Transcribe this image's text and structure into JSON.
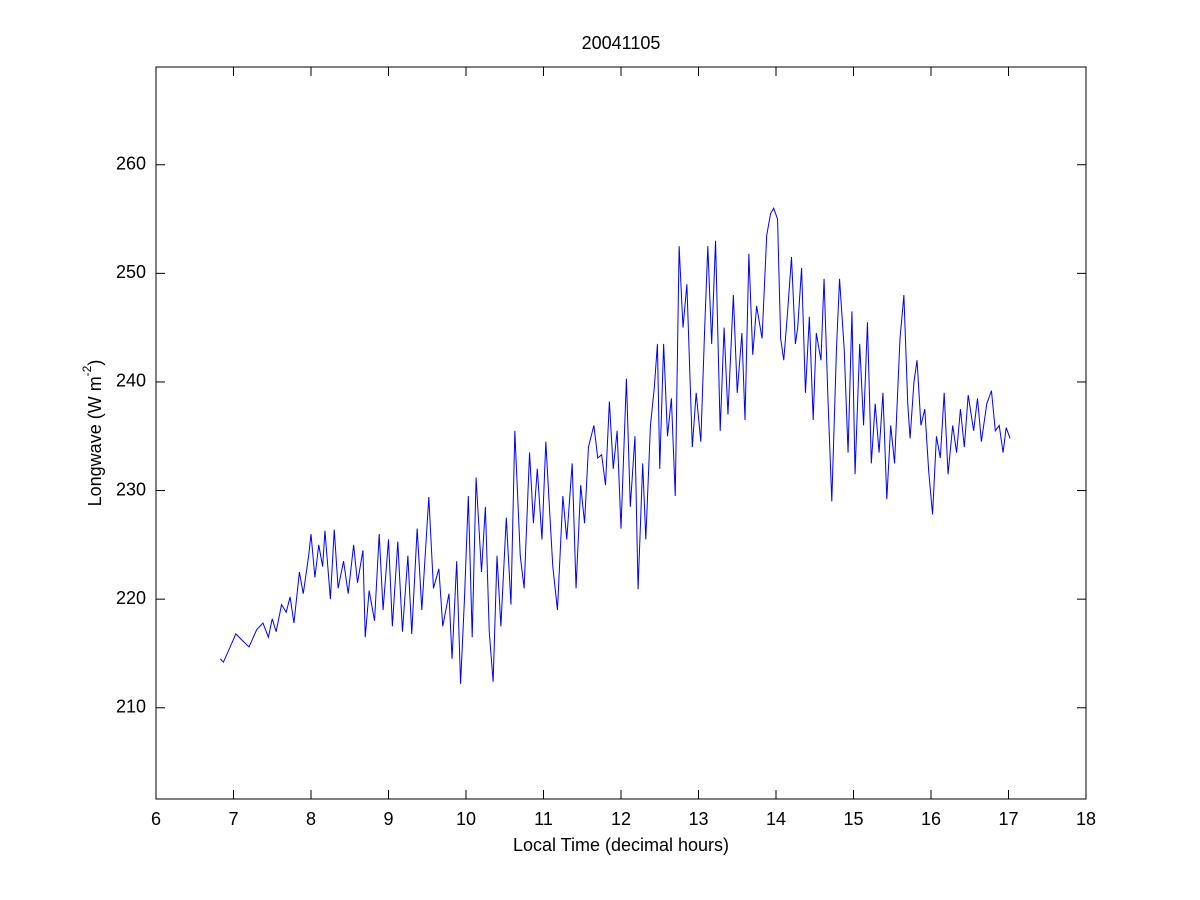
{
  "chart_data": {
    "type": "line",
    "title": "20041105",
    "xlabel": "Local Time (decimal hours)",
    "ylabel": [
      "Longwave (W m",
      "-2",
      ")"
    ],
    "x": [
      6.83,
      6.87,
      6.95,
      7.03,
      7.1,
      7.2,
      7.3,
      7.38,
      7.45,
      7.5,
      7.55,
      7.62,
      7.68,
      7.73,
      7.78,
      7.85,
      7.9,
      7.97,
      8.0,
      8.05,
      8.1,
      8.15,
      8.18,
      8.25,
      8.3,
      8.35,
      8.42,
      8.48,
      8.55,
      8.6,
      8.67,
      8.7,
      8.75,
      8.82,
      8.88,
      8.93,
      9.0,
      9.05,
      9.12,
      9.18,
      9.25,
      9.3,
      9.37,
      9.43,
      9.52,
      9.58,
      9.65,
      9.7,
      9.78,
      9.82,
      9.88,
      9.93,
      9.98,
      10.03,
      10.08,
      10.13,
      10.2,
      10.25,
      10.3,
      10.35,
      10.4,
      10.45,
      10.52,
      10.58,
      10.63,
      10.7,
      10.75,
      10.82,
      10.87,
      10.92,
      10.98,
      11.03,
      11.08,
      11.12,
      11.18,
      11.25,
      11.3,
      11.37,
      11.42,
      11.48,
      11.53,
      11.58,
      11.65,
      11.7,
      11.75,
      11.8,
      11.85,
      11.9,
      11.95,
      12.0,
      12.07,
      12.12,
      12.18,
      12.22,
      12.28,
      12.32,
      12.38,
      12.43,
      12.47,
      12.5,
      12.55,
      12.6,
      12.65,
      12.7,
      12.75,
      12.8,
      12.85,
      12.92,
      12.97,
      13.03,
      13.08,
      13.12,
      13.17,
      13.22,
      13.28,
      13.33,
      13.38,
      13.45,
      13.5,
      13.56,
      13.6,
      13.65,
      13.7,
      13.75,
      13.82,
      13.88,
      13.93,
      13.97,
      14.02,
      14.06,
      14.1,
      14.15,
      14.2,
      14.25,
      14.28,
      14.33,
      14.38,
      14.43,
      14.48,
      14.52,
      14.58,
      14.62,
      14.67,
      14.72,
      14.78,
      14.82,
      14.88,
      14.93,
      14.98,
      15.02,
      15.08,
      15.13,
      15.18,
      15.23,
      15.28,
      15.33,
      15.38,
      15.43,
      15.48,
      15.53,
      15.6,
      15.65,
      15.7,
      15.73,
      15.78,
      15.82,
      15.87,
      15.92,
      15.97,
      16.02,
      16.07,
      16.12,
      16.17,
      16.22,
      16.28,
      16.33,
      16.38,
      16.43,
      16.48,
      16.55,
      16.6,
      16.65,
      16.72,
      16.78,
      16.83,
      16.88,
      16.93,
      16.97,
      17.02
    ],
    "series": [
      {
        "color": "#0000ff",
        "values": [
          214.5,
          214.2,
          215.5,
          216.8,
          216.3,
          215.6,
          217.2,
          217.8,
          216.5,
          218.2,
          217,
          219.5,
          218.8,
          220.2,
          217.8,
          222.5,
          220.5,
          224,
          226,
          222,
          225,
          223,
          226.3,
          220,
          226.4,
          221,
          223.5,
          220.5,
          225,
          221.5,
          224.5,
          216.5,
          220.8,
          218,
          226,
          219,
          225.5,
          217.5,
          225.3,
          217,
          224,
          216.8,
          226.5,
          219,
          229.4,
          221,
          222.8,
          217.5,
          220.5,
          214.5,
          223.5,
          212.2,
          220,
          229.5,
          216.5,
          231.2,
          222.5,
          228.5,
          217,
          212.4,
          224,
          217.5,
          227.5,
          219.5,
          235.5,
          224,
          221,
          233.5,
          227,
          232,
          225.5,
          234.5,
          228,
          223,
          219,
          229.5,
          225.5,
          232.5,
          221,
          230.5,
          227,
          234,
          236,
          233,
          233.3,
          230.5,
          238.2,
          232,
          235.5,
          226.5,
          240.3,
          228.5,
          235,
          220.9,
          232.5,
          225.5,
          236,
          239.5,
          243.5,
          232,
          243.5,
          235,
          238.5,
          229.5,
          252.5,
          245,
          249,
          234,
          239,
          234.5,
          245,
          252.5,
          243.5,
          253,
          235.5,
          245,
          237,
          248,
          239,
          244.5,
          236.5,
          251.8,
          242.5,
          247,
          244,
          253.5,
          255.5,
          256,
          255,
          244,
          242,
          246.5,
          251.5,
          243.5,
          245,
          250.5,
          239,
          246,
          236.5,
          244.5,
          242,
          249.5,
          238.5,
          229,
          243,
          249.5,
          243,
          233.5,
          246.5,
          231.5,
          243.5,
          236,
          245.5,
          232.5,
          238,
          233.5,
          239,
          229.2,
          236,
          232.5,
          244,
          248,
          238,
          234.8,
          240,
          242,
          236,
          237.5,
          231.8,
          227.8,
          235,
          233,
          239,
          231.5,
          236,
          233.5,
          237.5,
          234,
          238.8,
          235.5,
          238.5,
          234.5,
          238,
          239.2,
          235.5,
          236,
          233.5,
          235.8,
          234.8
        ]
      }
    ],
    "xlim": [
      6,
      18
    ],
    "xticks": [
      6,
      7,
      8,
      9,
      10,
      11,
      12,
      13,
      14,
      15,
      16,
      17,
      18
    ],
    "ylim": [
      201.6,
      269
    ],
    "yticks": [
      210,
      220,
      230,
      240,
      250,
      260
    ],
    "grid": false
  }
}
